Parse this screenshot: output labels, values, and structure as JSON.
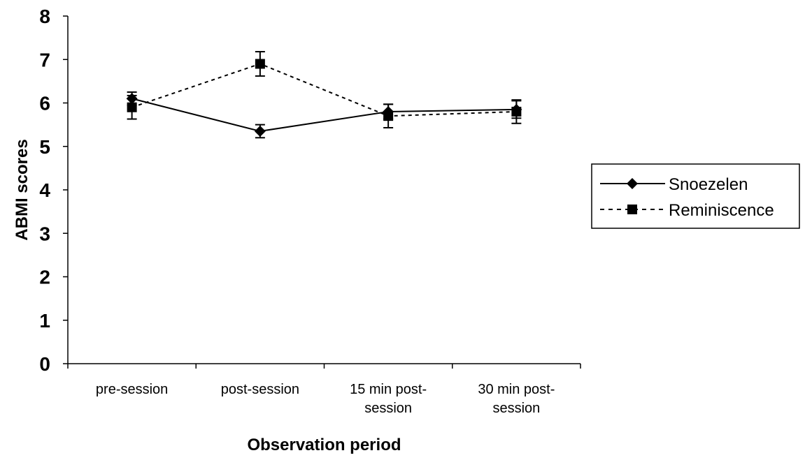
{
  "chart_data": {
    "type": "line",
    "categories": [
      "pre-session",
      "post-session",
      "15 min post-session",
      "30 min post-session"
    ],
    "category_lines": [
      [
        "pre-session"
      ],
      [
        "post-session"
      ],
      [
        "15 min post-",
        "session"
      ],
      [
        "30 min post-",
        "session"
      ]
    ],
    "xlabel": "Observation period",
    "ylabel": "ABMI scores",
    "ylim": [
      0,
      8
    ],
    "yticks": [
      "0",
      "1",
      "2",
      "3",
      "4",
      "5",
      "6",
      "7",
      "8"
    ],
    "grid": false,
    "legend_position": "right",
    "series": [
      {
        "name": "Snoezelen",
        "values": [
          6.1,
          5.35,
          5.8,
          5.85
        ],
        "error": [
          0.15,
          0.15,
          0.17,
          0.2
        ],
        "marker": "diamond",
        "line_style": "solid",
        "color": "#000000"
      },
      {
        "name": "Reminiscence",
        "values": [
          5.9,
          6.9,
          5.7,
          5.8
        ],
        "error": [
          0.27,
          0.28,
          0.27,
          0.27
        ],
        "marker": "square",
        "line_style": "dashed",
        "color": "#000000"
      }
    ]
  }
}
